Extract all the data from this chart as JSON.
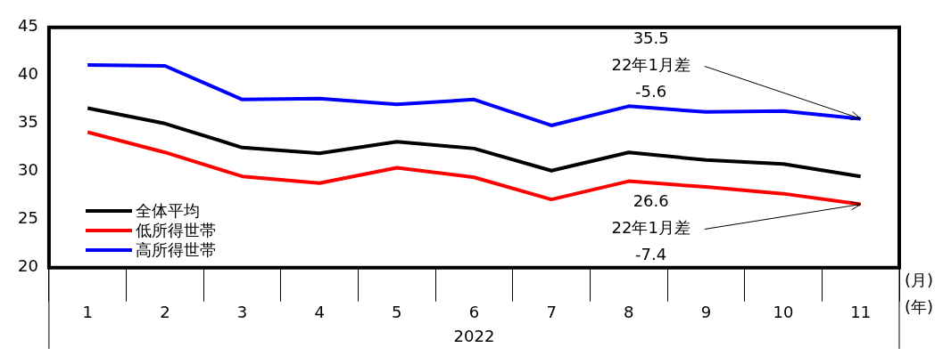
{
  "chart_data": {
    "type": "line",
    "categories": [
      "1",
      "2",
      "3",
      "4",
      "5",
      "6",
      "7",
      "8",
      "9",
      "10",
      "11"
    ],
    "xlabel": "2022",
    "ylim": [
      20,
      45
    ],
    "yticks": [
      20,
      25,
      30,
      35,
      40,
      45
    ],
    "grid": false,
    "legend": "bottom left",
    "marker": "none",
    "line_style": "solid",
    "series": [
      {
        "name": "全体平均",
        "color": "#000000",
        "values": [
          36.6,
          35.0,
          32.5,
          31.9,
          33.1,
          32.4,
          30.1,
          32.0,
          31.2,
          30.8,
          29.5
        ]
      },
      {
        "name": "低所得世帯",
        "color": "#ff0000",
        "values": [
          34.1,
          32.0,
          29.5,
          28.8,
          30.4,
          29.4,
          27.1,
          29.0,
          28.4,
          27.7,
          26.6
        ]
      },
      {
        "name": "高所得世帯",
        "color": "#0000ff",
        "values": [
          41.1,
          41.0,
          37.5,
          37.6,
          37.0,
          37.5,
          34.8,
          36.8,
          36.2,
          36.3,
          35.5
        ]
      }
    ],
    "annotations": [
      {
        "text": "35.5\n22年1月差\n-5.6",
        "x": "11",
        "y": 35.5
      },
      {
        "text": "26.6\n22年1月差\n-7.4",
        "x": "11",
        "y": 26.6
      },
      "(月)",
      "(年)"
    ]
  }
}
